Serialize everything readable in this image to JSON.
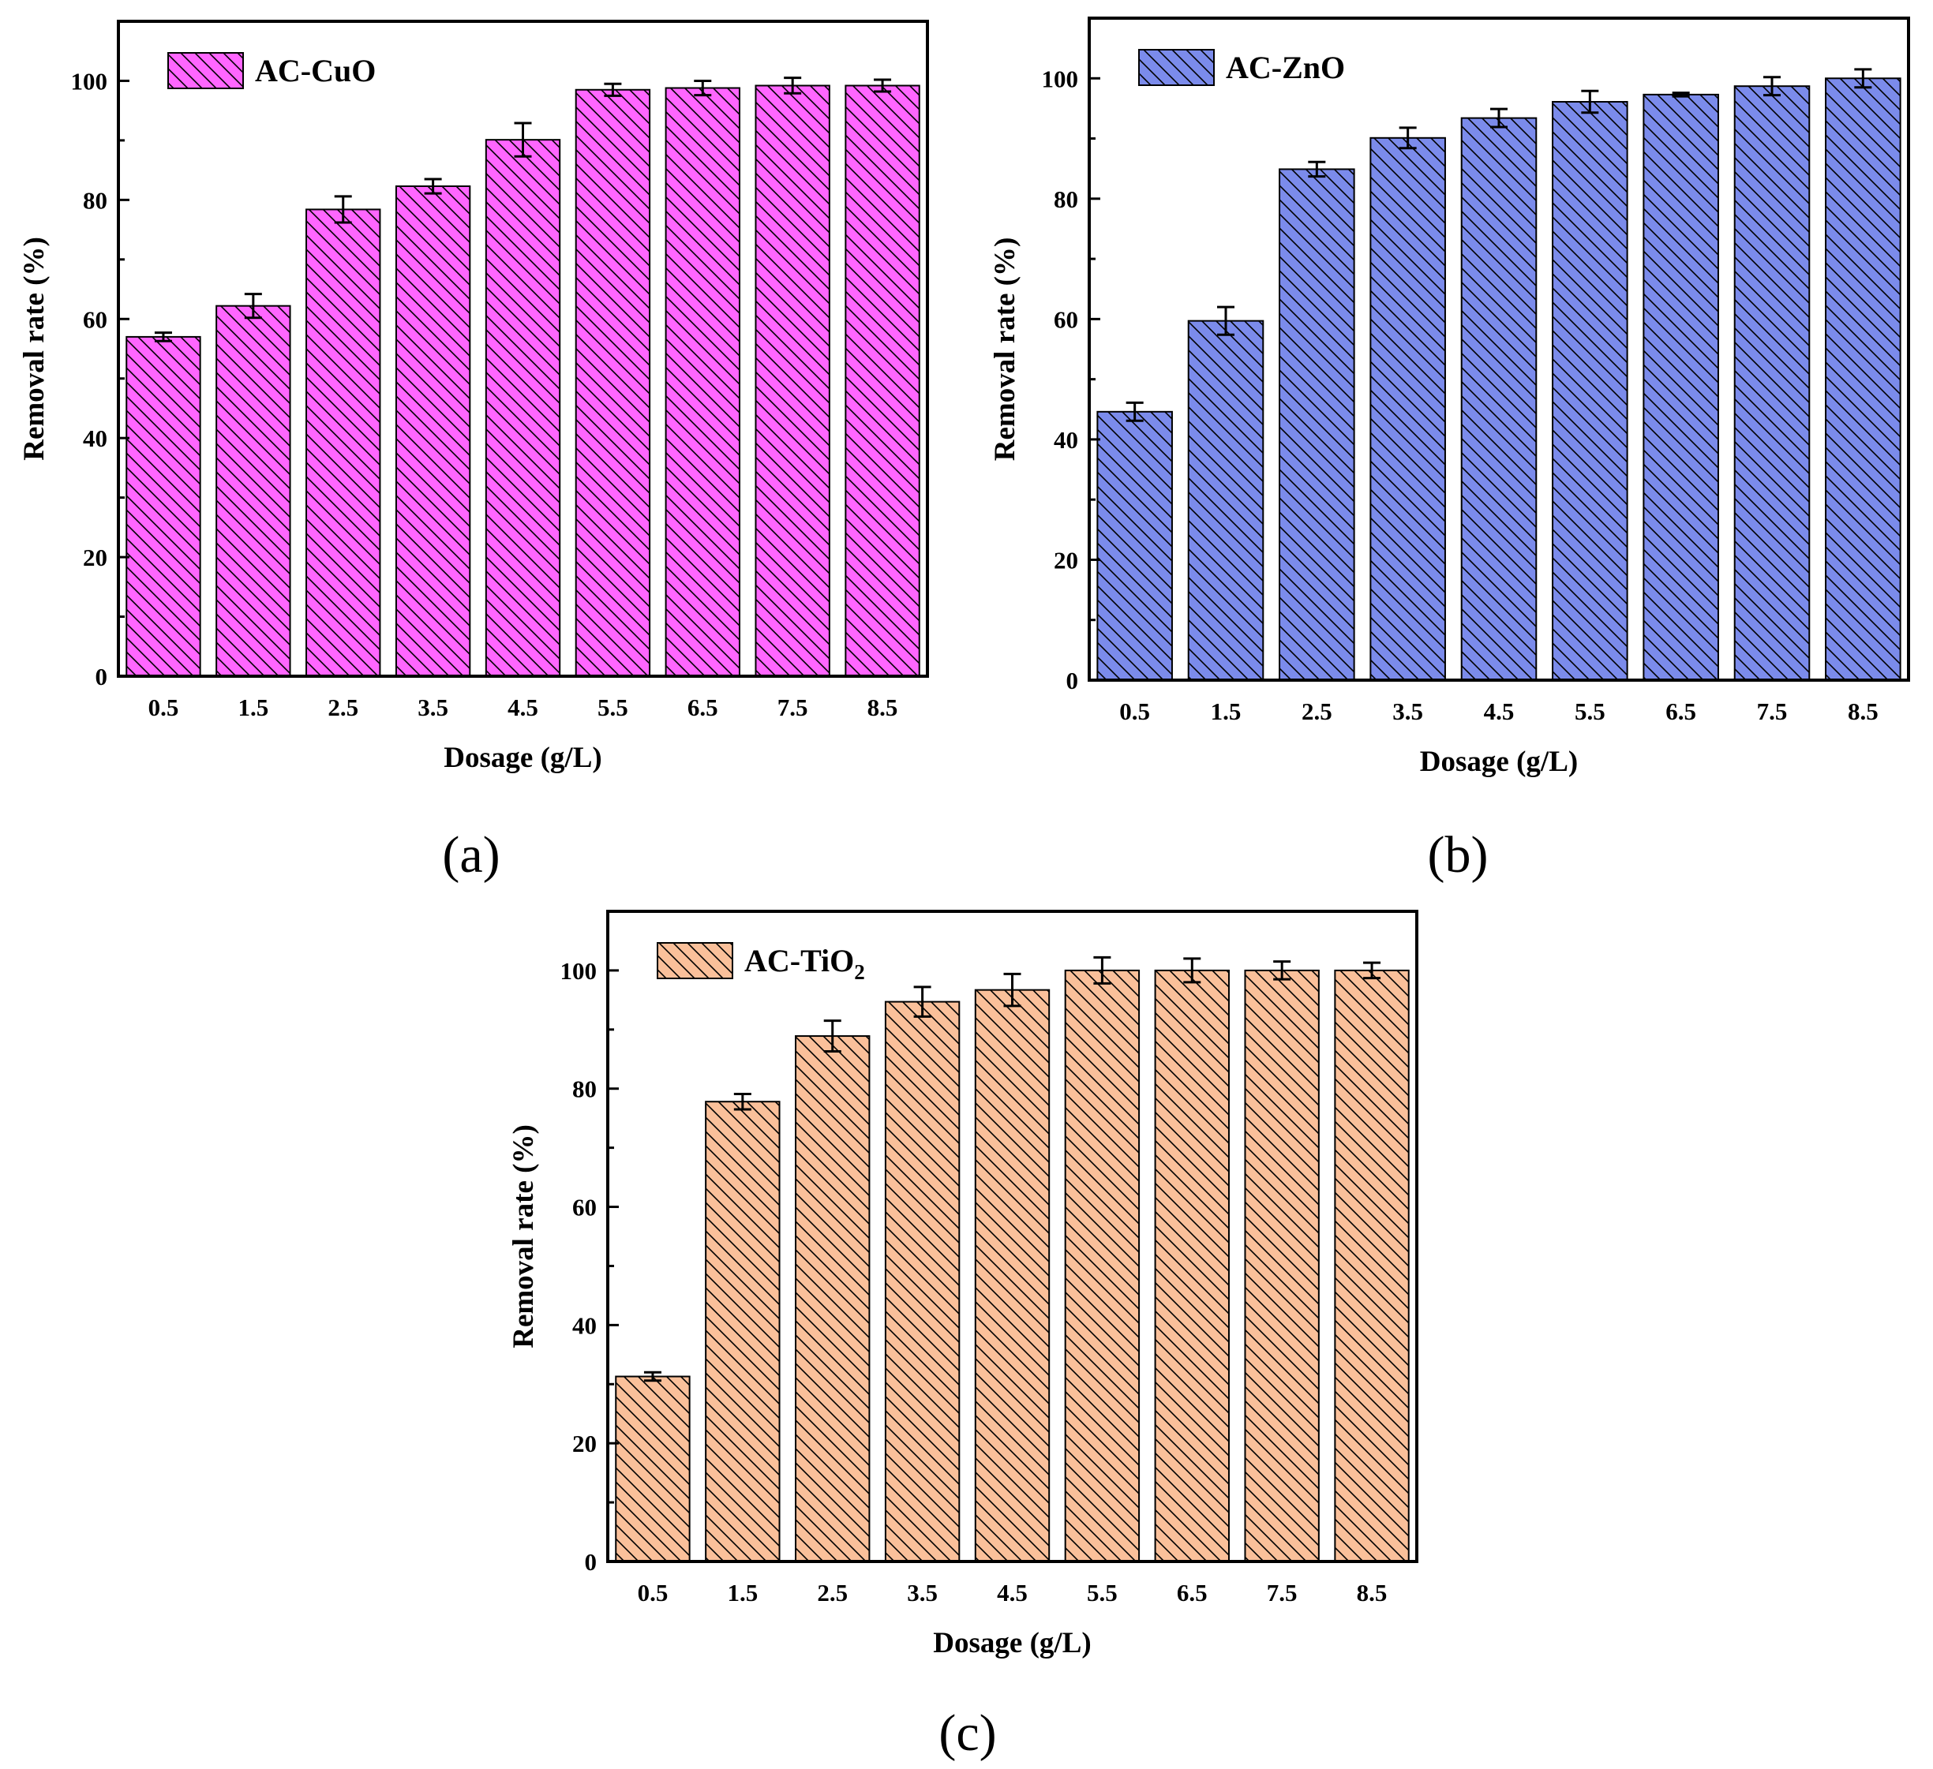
{
  "chart_data": [
    {
      "type": "bar",
      "panel_label": "(a)",
      "categories": [
        "0.5",
        "1.5",
        "2.5",
        "3.5",
        "4.5",
        "5.5",
        "6.5",
        "7.5",
        "8.5"
      ],
      "series": [
        {
          "name": "AC-CuO",
          "values": [
            57.0,
            62.2,
            78.4,
            82.3,
            90.1,
            98.5,
            98.8,
            99.2,
            99.2
          ],
          "errors": [
            0.7,
            2.0,
            2.2,
            1.2,
            2.8,
            1.0,
            1.2,
            1.3,
            1.0
          ]
        }
      ],
      "legend_main": "AC-CuO",
      "legend_sub": "",
      "xlabel": "Dosage (g/L)",
      "ylabel": "Removal rate (%)",
      "ylim": [
        0,
        110
      ],
      "yticks": [
        "0",
        "20",
        "40",
        "60",
        "80",
        "100"
      ],
      "legend_position": "top-left",
      "grid": false,
      "colors": {
        "fill": "#FF66FF",
        "hatch": "#000000"
      }
    },
    {
      "type": "bar",
      "panel_label": "(b)",
      "categories": [
        "0.5",
        "1.5",
        "2.5",
        "3.5",
        "4.5",
        "5.5",
        "6.5",
        "7.5",
        "8.5"
      ],
      "series": [
        {
          "name": "AC-ZnO",
          "values": [
            44.6,
            59.7,
            84.9,
            90.1,
            93.4,
            96.1,
            97.3,
            98.7,
            100.0
          ],
          "errors": [
            1.5,
            2.3,
            1.2,
            1.7,
            1.5,
            1.8,
            0.3,
            1.5,
            1.5
          ]
        }
      ],
      "legend_main": "AC-ZnO",
      "legend_sub": "",
      "xlabel": "Dosage (g/L)",
      "ylabel": "Removal rate (%)",
      "ylim": [
        0,
        110
      ],
      "yticks": [
        "0",
        "20",
        "40",
        "60",
        "80",
        "100"
      ],
      "legend_position": "top-left",
      "grid": false,
      "colors": {
        "fill": "#7B8BEB",
        "hatch": "#000000"
      }
    },
    {
      "type": "bar",
      "panel_label": "(c)",
      "categories": [
        "0.5",
        "1.5",
        "2.5",
        "3.5",
        "4.5",
        "5.5",
        "6.5",
        "7.5",
        "8.5"
      ],
      "series": [
        {
          "name": "AC-TiO2",
          "values": [
            31.3,
            77.8,
            88.9,
            94.7,
            96.7,
            100.0,
            100.0,
            100.0,
            100.0
          ],
          "errors": [
            0.7,
            1.3,
            2.6,
            2.5,
            2.7,
            2.2,
            2.0,
            1.5,
            1.3
          ]
        }
      ],
      "legend_main": "AC-TiO",
      "legend_sub": "2",
      "xlabel": "Dosage (g/L)",
      "ylabel": "Removal rate (%)",
      "ylim": [
        0,
        110
      ],
      "yticks": [
        "0",
        "20",
        "40",
        "60",
        "80",
        "100"
      ],
      "legend_position": "top-left",
      "grid": false,
      "colors": {
        "fill": "#FAC09A",
        "hatch": "#000000"
      }
    }
  ]
}
